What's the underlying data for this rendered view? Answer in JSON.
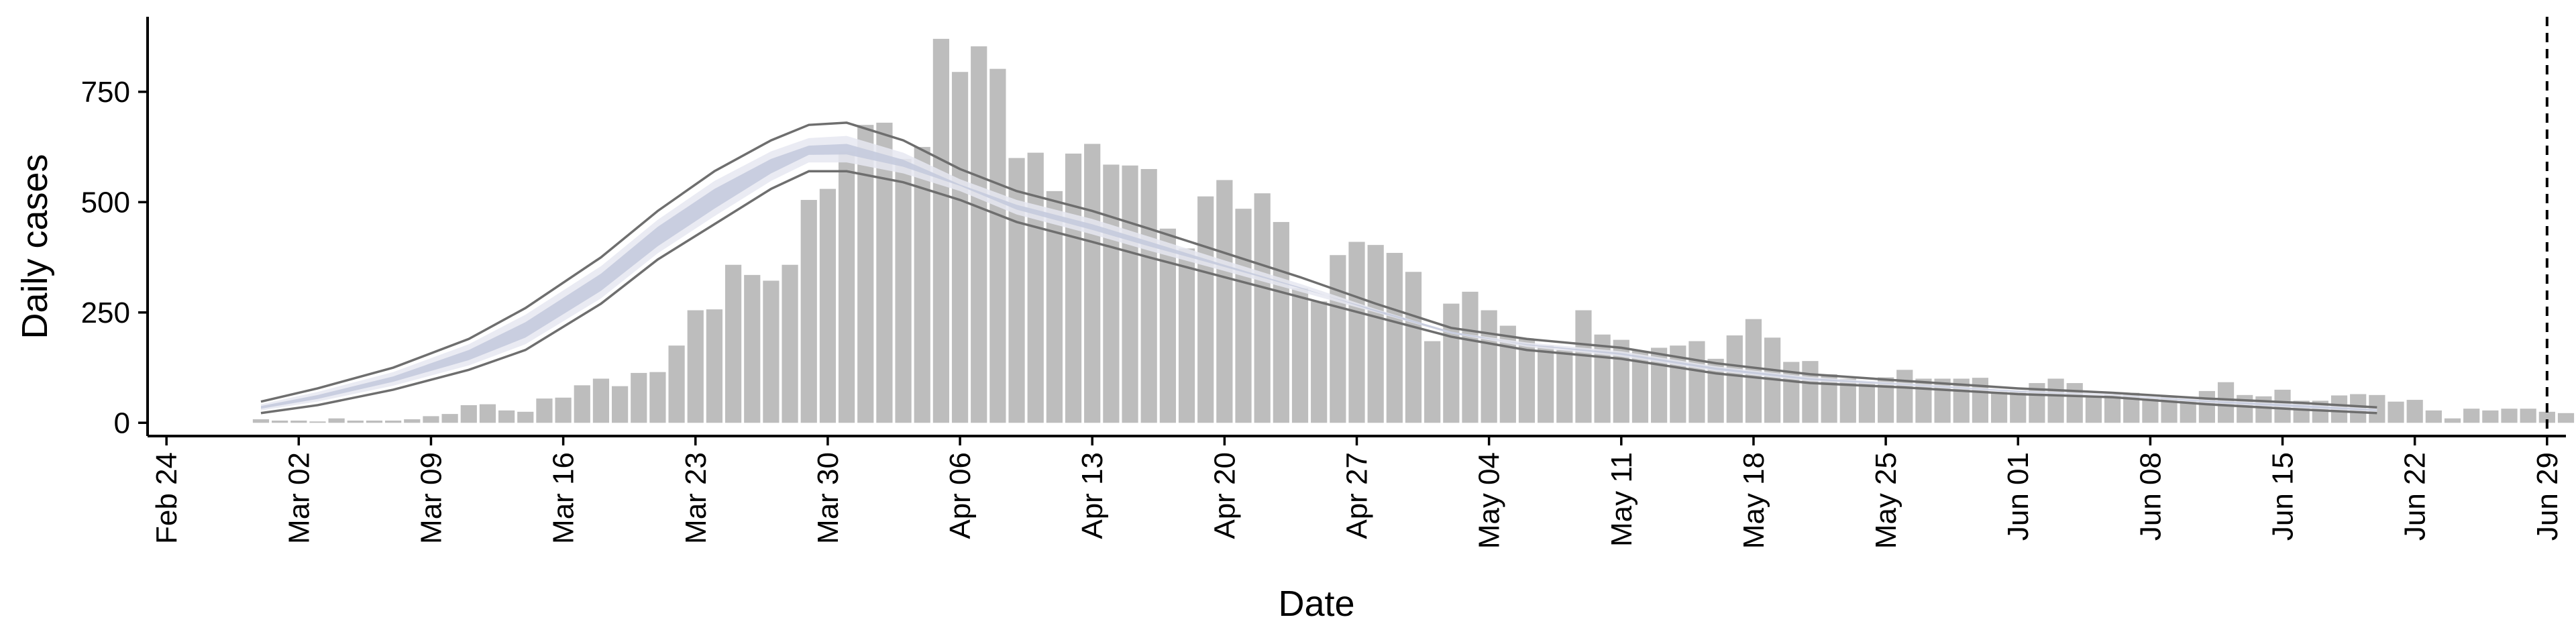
{
  "chart_data": {
    "type": "bar",
    "title": "",
    "xlabel": "Date",
    "ylabel": "Daily cases",
    "ylim": [
      -30,
      920
    ],
    "yticks": [
      0,
      250,
      500,
      750
    ],
    "xlim": [
      "2020-02-23",
      "2020-06-30"
    ],
    "xticks": [
      {
        "date": "2020-02-24",
        "label": "Feb 24"
      },
      {
        "date": "2020-03-02",
        "label": "Mar 02"
      },
      {
        "date": "2020-03-09",
        "label": "Mar 09"
      },
      {
        "date": "2020-03-16",
        "label": "Mar 16"
      },
      {
        "date": "2020-03-23",
        "label": "Mar 23"
      },
      {
        "date": "2020-03-30",
        "label": "Mar 30"
      },
      {
        "date": "2020-04-06",
        "label": "Apr 06"
      },
      {
        "date": "2020-04-13",
        "label": "Apr 13"
      },
      {
        "date": "2020-04-20",
        "label": "Apr 20"
      },
      {
        "date": "2020-04-27",
        "label": "Apr 27"
      },
      {
        "date": "2020-05-04",
        "label": "May 04"
      },
      {
        "date": "2020-05-11",
        "label": "May 11"
      },
      {
        "date": "2020-05-18",
        "label": "May 18"
      },
      {
        "date": "2020-05-25",
        "label": "May 25"
      },
      {
        "date": "2020-06-01",
        "label": "Jun 01"
      },
      {
        "date": "2020-06-08",
        "label": "Jun 08"
      },
      {
        "date": "2020-06-15",
        "label": "Jun 15"
      },
      {
        "date": "2020-06-22",
        "label": "Jun 22"
      },
      {
        "date": "2020-06-29",
        "label": "Jun 29"
      }
    ],
    "vline_date": "2020-06-29",
    "bars": {
      "start_date": "2020-02-29",
      "values": [
        8,
        5,
        5,
        3,
        10,
        5,
        5,
        5,
        8,
        15,
        20,
        40,
        42,
        28,
        25,
        55,
        57,
        85,
        100,
        83,
        113,
        115,
        175,
        255,
        257,
        358,
        335,
        322,
        358,
        505,
        530,
        615,
        675,
        680,
        598,
        625,
        870,
        795,
        853,
        802,
        600,
        612,
        525,
        610,
        632,
        585,
        583,
        575,
        440,
        395,
        513,
        550,
        485,
        520,
        455,
        305,
        275,
        380,
        410,
        403,
        385,
        342,
        185,
        270,
        297,
        255,
        220,
        190,
        175,
        165,
        255,
        200,
        188,
        163,
        170,
        175,
        185,
        145,
        198,
        235,
        193,
        138,
        140,
        110,
        100,
        92,
        103,
        120,
        100,
        100,
        100,
        102,
        70,
        73,
        90,
        100,
        90,
        60,
        65,
        68,
        55,
        60,
        50,
        72,
        92,
        63,
        60,
        75,
        50,
        50,
        62,
        65,
        63,
        48,
        52,
        28,
        10,
        32,
        28,
        32,
        32,
        25,
        22,
        20,
        5
      ]
    },
    "model": {
      "start_date": "2020-02-29",
      "series": [
        {
          "dates": [
            "2020-02-29",
            "2020-03-03",
            "2020-03-07",
            "2020-03-11",
            "2020-03-14",
            "2020-03-18",
            "2020-03-21",
            "2020-03-24",
            "2020-03-27",
            "2020-03-29",
            "2020-03-31",
            "2020-04-03",
            "2020-04-06",
            "2020-04-09",
            "2020-04-13",
            "2020-04-16",
            "2020-04-20",
            "2020-04-24",
            "2020-04-28",
            "2020-05-02",
            "2020-05-06",
            "2020-05-11",
            "2020-05-16",
            "2020-05-21",
            "2020-05-26",
            "2020-06-01",
            "2020-06-06",
            "2020-06-11",
            "2020-06-16",
            "2020-06-20"
          ],
          "upper": [
            48,
            78,
            125,
            190,
            260,
            375,
            480,
            570,
            640,
            675,
            680,
            640,
            575,
            525,
            480,
            440,
            385,
            330,
            270,
            215,
            190,
            170,
            135,
            110,
            95,
            78,
            68,
            55,
            45,
            35
          ],
          "lower": [
            22,
            40,
            75,
            120,
            165,
            270,
            370,
            450,
            530,
            570,
            570,
            545,
            505,
            455,
            410,
            375,
            330,
            285,
            240,
            195,
            165,
            145,
            112,
            90,
            80,
            65,
            58,
            42,
            30,
            22
          ],
          "band_outer_upper": [
            42,
            70,
            115,
            178,
            245,
            355,
            460,
            548,
            615,
            645,
            650,
            612,
            552,
            505,
            462,
            422,
            368,
            315,
            258,
            206,
            182,
            162,
            128,
            104,
            90,
            74,
            65,
            52,
            42,
            32
          ],
          "band_outer_lower": [
            28,
            48,
            84,
            130,
            178,
            282,
            384,
            468,
            548,
            590,
            590,
            565,
            525,
            472,
            427,
            390,
            344,
            297,
            250,
            202,
            172,
            150,
            117,
            94,
            84,
            68,
            61,
            45,
            33,
            25
          ],
          "band_inner_upper": [
            38,
            63,
            105,
            165,
            228,
            338,
            444,
            530,
            598,
            628,
            632,
            596,
            540,
            494,
            450,
            411,
            358,
            307,
            252,
            202,
            178,
            158,
            125,
            101,
            88,
            72,
            63,
            50,
            40,
            30
          ],
          "band_inner_lower": [
            32,
            54,
            93,
            142,
            193,
            299,
            400,
            485,
            565,
            607,
            608,
            580,
            537,
            483,
            437,
            400,
            353,
            305,
            256,
            207,
            176,
            154,
            120,
            97,
            86,
            70,
            63,
            47,
            35,
            27
          ]
        }
      ]
    },
    "colors": {
      "bars": "#bdbdbd",
      "model_line": "#6e6e6e",
      "band_outer": "#e6e8f1",
      "band_inner": "#c3c9dc",
      "axis": "#000000"
    }
  }
}
